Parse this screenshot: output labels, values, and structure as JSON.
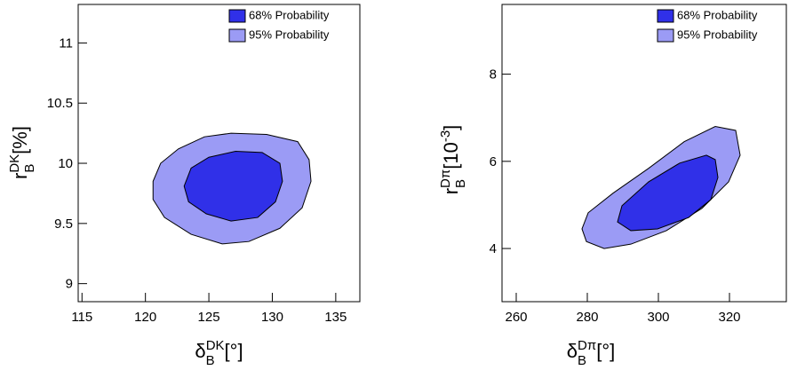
{
  "chart_data": [
    {
      "type": "contour",
      "xlabel": [
        {
          "text": "δ",
          "pos": "base"
        },
        {
          "text": "B",
          "pos": "sub"
        },
        {
          "text": "DK",
          "pos": "sup"
        },
        {
          "text": "[°]",
          "pos": "base"
        }
      ],
      "ylabel": [
        {
          "text": "r",
          "pos": "base"
        },
        {
          "text": "B",
          "pos": "sub"
        },
        {
          "text": "DK",
          "pos": "sup"
        },
        {
          "text": "[%]",
          "pos": "base"
        }
      ],
      "xlim": [
        114.7,
        136.9
      ],
      "ylim": [
        8.85,
        11.32
      ],
      "xticks": [
        115,
        120,
        125,
        130,
        135
      ],
      "yticks": [
        9,
        9.5,
        10,
        10.5,
        11
      ],
      "legend": "upper right",
      "series": [
        {
          "name": "95% Probability",
          "color": "#9b9bf5",
          "x": [
            120.6,
            121.2,
            122.6,
            124.65,
            126.75,
            129.55,
            132.0,
            132.9,
            133.05,
            132.35,
            130.6,
            128.15,
            126.05,
            123.6,
            121.5,
            120.6
          ],
          "y": [
            9.85,
            10.0,
            10.12,
            10.22,
            10.25,
            10.24,
            10.18,
            10.03,
            9.85,
            9.63,
            9.46,
            9.35,
            9.33,
            9.41,
            9.55,
            9.7
          ]
        },
        {
          "name": "68% Probability",
          "color": "#3030e8",
          "x": [
            123.05,
            123.6,
            125.0,
            127.1,
            129.2,
            130.6,
            130.8,
            130.25,
            128.85,
            126.75,
            124.8,
            123.4
          ],
          "y": [
            9.81,
            9.96,
            10.05,
            10.1,
            10.09,
            10.0,
            9.85,
            9.68,
            9.55,
            9.52,
            9.58,
            9.68
          ]
        }
      ]
    },
    {
      "type": "contour",
      "xlabel": [
        {
          "text": "δ",
          "pos": "base"
        },
        {
          "text": "B",
          "pos": "sub"
        },
        {
          "text": "Dπ",
          "pos": "sup"
        },
        {
          "text": "[°]",
          "pos": "base"
        }
      ],
      "ylabel": [
        {
          "text": "r",
          "pos": "base"
        },
        {
          "text": "B",
          "pos": "sub"
        },
        {
          "text": "Dπ",
          "pos": "sup"
        },
        {
          "text": "[10",
          "pos": "base"
        },
        {
          "text": "-3",
          "pos": "sup"
        },
        {
          "text": "]",
          "pos": "base"
        }
      ],
      "xlim": [
        256,
        336
      ],
      "ylim": [
        2.78,
        9.6
      ],
      "xticks": [
        260,
        280,
        300,
        320
      ],
      "yticks": [
        4,
        6,
        8
      ],
      "legend": "upper right",
      "series": [
        {
          "name": "95% Probability",
          "color": "#9b9bf5",
          "x": [
            278.5,
            280.25,
            287.25,
            297.25,
            307.25,
            316,
            321.75,
            323,
            319.75,
            312.25,
            302.25,
            292.25,
            284.75,
            279.75
          ],
          "y": [
            4.45,
            4.82,
            5.27,
            5.84,
            6.45,
            6.8,
            6.71,
            6.14,
            5.53,
            4.92,
            4.41,
            4.1,
            4.0,
            4.16
          ]
        },
        {
          "name": "68% Probability",
          "color": "#3030e8",
          "x": [
            288.5,
            289.75,
            297.25,
            306,
            313.5,
            316,
            316.75,
            314.75,
            308.5,
            299.75,
            292.25
          ],
          "y": [
            4.61,
            4.98,
            5.53,
            5.96,
            6.14,
            6.04,
            5.63,
            5.12,
            4.71,
            4.45,
            4.41
          ]
        }
      ]
    }
  ]
}
